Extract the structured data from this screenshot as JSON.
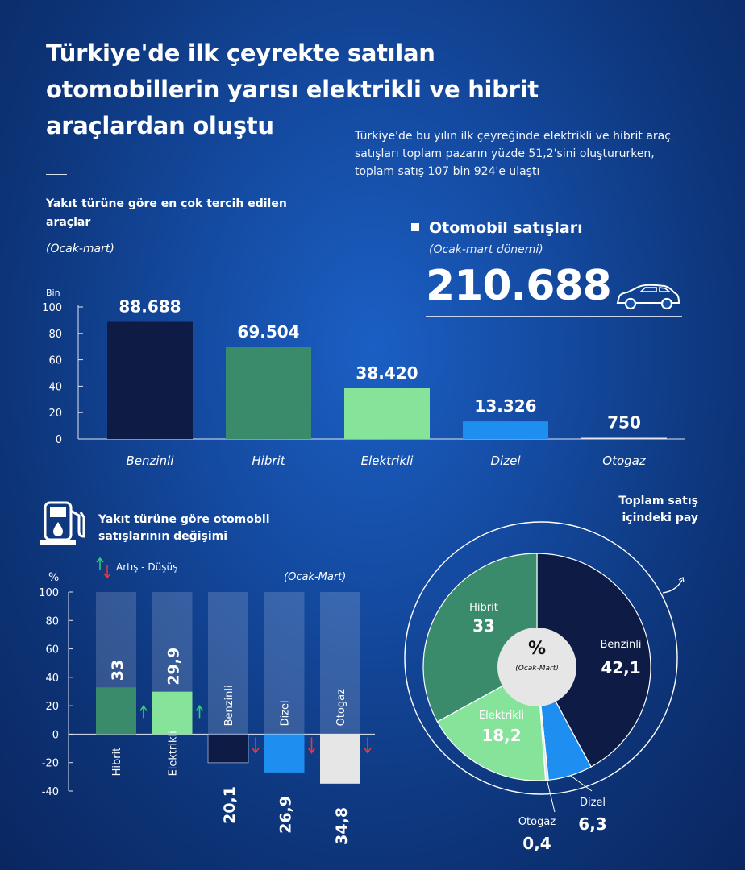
{
  "header": {
    "title": "Türkiye'de ilk çeyrekte satılan otomobillerin yarısı elektrikli ve hibrit araçlardan oluştu",
    "subtitle": "Türkiye'de bu yılın ilk çeyreğinde elektrikli ve hibrit araç satışları toplam pazarın yüzde 51,2'sini oluştururken, toplam satış 107 bin 924'e ulaştı"
  },
  "sales": {
    "heading": "Otomobil satışları",
    "period": "(Ocak-mart dönemi)",
    "total": "210.688"
  },
  "colors": {
    "benzinli": "#0e1b45",
    "hibrit": "#3a8a6c",
    "elektrikli": "#86e39a",
    "dizel": "#1e8ff0",
    "otogaz": "#e6e6e6",
    "up": "#2fd07a",
    "down": "#e83a3a"
  },
  "chart_data": [
    {
      "type": "bar",
      "title": "Yakıt türüne göre en çok tercih edilen araçlar",
      "period": "(Ocak-mart)",
      "unit_label": "Bin",
      "ylim": [
        0,
        100
      ],
      "yticks": [
        0,
        20,
        40,
        60,
        80,
        100
      ],
      "categories": [
        "Benzinli",
        "Hibrit",
        "Elektrikli",
        "Dizel",
        "Otogaz"
      ],
      "values": [
        88.688,
        69.504,
        38.42,
        13.326,
        0.75
      ],
      "labels": [
        "88.688",
        "69.504",
        "38.420",
        "13.326",
        "750"
      ]
    },
    {
      "type": "bar",
      "title": "Yakıt türüne göre otomobil satışlarının değişimi",
      "period": "(Ocak-Mart)",
      "unit_label": "%",
      "legend": "Artış - Düşüş",
      "ylim": [
        -40,
        100
      ],
      "yticks": [
        100,
        80,
        60,
        40,
        20,
        0,
        -20,
        -40
      ],
      "categories": [
        "Hibrit",
        "Elektrikli",
        "Benzinli",
        "Dizel",
        "Otogaz"
      ],
      "values": [
        33,
        29.9,
        -20.1,
        -26.9,
        -34.8
      ],
      "labels": [
        "33",
        "29,9",
        "20,1",
        "26,9",
        "34,8"
      ]
    },
    {
      "type": "pie",
      "title": "Toplam satış içindeki pay",
      "center_label": "%",
      "center_sub": "(Ocak-Mart)",
      "categories": [
        "Benzinli",
        "Dizel",
        "Otogaz",
        "Elektrikli",
        "Hibrit"
      ],
      "values": [
        42.1,
        6.3,
        0.4,
        18.2,
        33
      ],
      "labels": [
        "42,1",
        "6,3",
        "0,4",
        "18,2",
        "33"
      ]
    }
  ]
}
